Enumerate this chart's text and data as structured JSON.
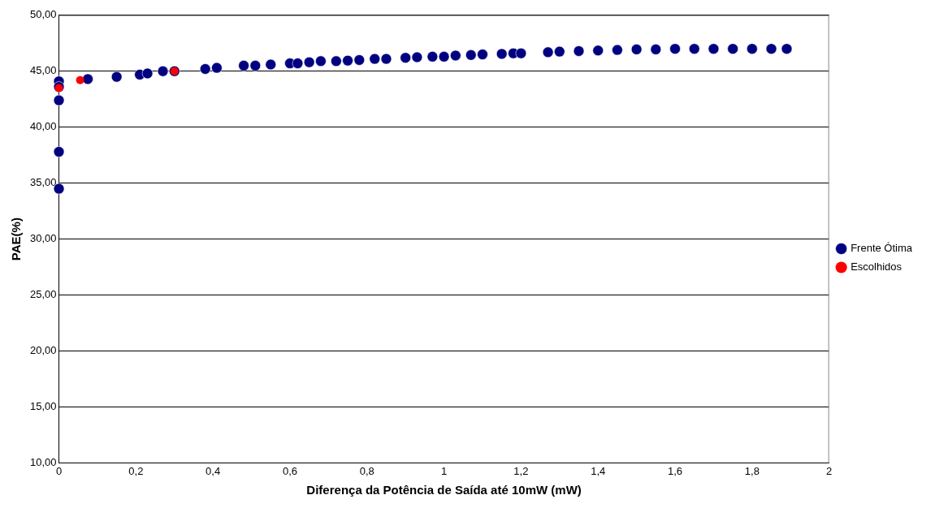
{
  "chart_data": {
    "type": "scatter",
    "xlabel": "Diferença da Potência de Saída até 10mW (mW)",
    "ylabel": "PAE(%)",
    "xlim": [
      0,
      2
    ],
    "xticks": [
      0,
      {
        "value": 0.2,
        "label": "0,2"
      },
      {
        "value": 0.4,
        "label": "0,4"
      },
      {
        "value": 0.6,
        "label": "0,6"
      },
      {
        "value": 0.8,
        "label": "0,8"
      },
      1,
      {
        "value": 1.2,
        "label": "1,2"
      },
      {
        "value": 1.4,
        "label": "1,4"
      },
      {
        "value": 1.6,
        "label": "1,6"
      },
      {
        "value": 1.8,
        "label": "1,8"
      },
      2
    ],
    "ylim": [
      10,
      50
    ],
    "yticks": [
      {
        "value": 10,
        "label": "10,00"
      },
      {
        "value": 15,
        "label": "15,00"
      },
      {
        "value": 20,
        "label": "20,00"
      },
      {
        "value": 25,
        "label": "25,00"
      },
      {
        "value": 30,
        "label": "30,00"
      },
      {
        "value": 35,
        "label": "35,00"
      },
      {
        "value": 40,
        "label": "40,00"
      },
      {
        "value": 45,
        "label": "45,00"
      },
      {
        "value": 50,
        "label": "50,00"
      }
    ],
    "grid": "y",
    "legend": "right",
    "marker": "circle",
    "series": [
      {
        "name": "Frente Ótima",
        "color": "#000080",
        "x": [
          0,
          0,
          0,
          0,
          0,
          0.075,
          0.15,
          0.21,
          0.23,
          0.27,
          0.3,
          0.38,
          0.41,
          0.48,
          0.51,
          0.55,
          0.6,
          0.62,
          0.65,
          0.68,
          0.72,
          0.75,
          0.78,
          0.82,
          0.85,
          0.9,
          0.93,
          0.97,
          1.0,
          1.03,
          1.07,
          1.1,
          1.15,
          1.18,
          1.2,
          1.27,
          1.3,
          1.35,
          1.4,
          1.45,
          1.5,
          1.55,
          1.6,
          1.65,
          1.7,
          1.75,
          1.8,
          1.85,
          1.89
        ],
        "values": [
          44.1,
          43.6,
          42.4,
          37.8,
          34.5,
          44.3,
          44.5,
          44.7,
          44.8,
          45.0,
          45.0,
          45.2,
          45.3,
          45.5,
          45.5,
          45.6,
          45.7,
          45.7,
          45.8,
          45.9,
          45.9,
          45.95,
          46.0,
          46.1,
          46.1,
          46.2,
          46.25,
          46.3,
          46.3,
          46.4,
          46.45,
          46.5,
          46.55,
          46.6,
          46.6,
          46.7,
          46.75,
          46.8,
          46.85,
          46.9,
          46.95,
          46.95,
          47.0,
          47.0,
          47.0,
          47.0,
          47.0,
          47.0,
          47.0
        ]
      },
      {
        "name": "Escolhidos",
        "color": "#ff0000",
        "x": [
          0,
          0.055,
          0.3
        ],
        "values": [
          43.5,
          44.2,
          45.0
        ]
      }
    ]
  }
}
